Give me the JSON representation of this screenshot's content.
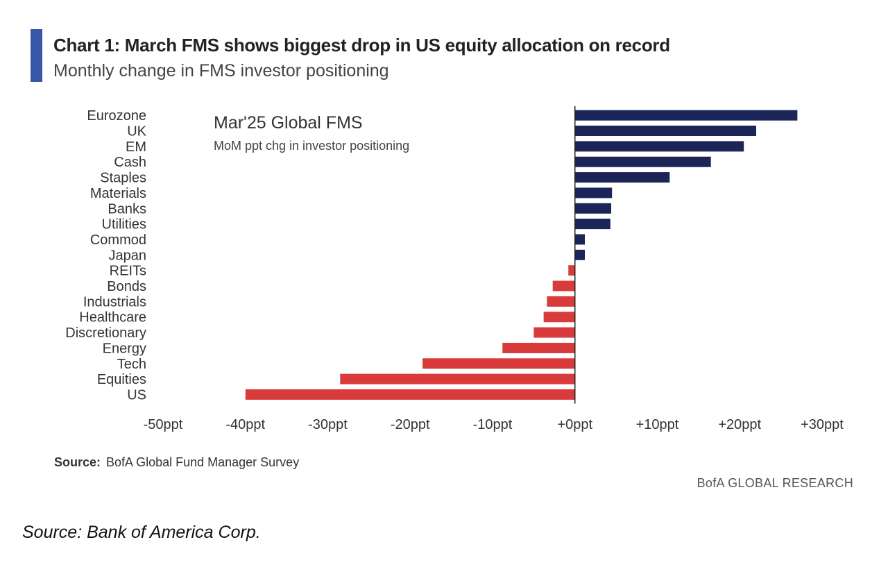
{
  "title": "Chart 1: March FMS shows biggest drop in US equity allocation on record",
  "subtitle": "Monthly change in FMS investor positioning",
  "source_label": "Source:",
  "source_text": "BofA Global Fund Manager Survey",
  "brand": "BofA GLOBAL RESEARCH",
  "footer_source": "Source: Bank of America Corp.",
  "colors": {
    "accent": "#3a56a6",
    "positive": "#1c2558",
    "negative": "#d93a3a"
  },
  "chart_data": {
    "type": "bar",
    "orientation": "horizontal",
    "inset_title": "Mar'25 Global FMS",
    "inset_subtitle": "MoM ppt chg in investor positioning",
    "categories": [
      "Eurozone",
      "UK",
      "EM",
      "Cash",
      "Staples",
      "Materials",
      "Banks",
      "Utilities",
      "Commod",
      "Japan",
      "REITs",
      "Bonds",
      "Industrials",
      "Healthcare",
      "Discretionary",
      "Energy",
      "Tech",
      "Equities",
      "US"
    ],
    "values": [
      27,
      22,
      20.5,
      16.5,
      11.5,
      4.5,
      4.4,
      4.3,
      1.2,
      1.2,
      -0.8,
      -2.7,
      -3.4,
      -3.8,
      -5,
      -8.8,
      -18.5,
      -28.5,
      -40
    ],
    "xlim": [
      -50,
      30
    ],
    "xticks": [
      -50,
      -40,
      -30,
      -20,
      -10,
      0,
      10,
      20,
      30
    ],
    "xtick_labels": [
      "-50ppt",
      "-40ppt",
      "-30ppt",
      "-20ppt",
      "-10ppt",
      "+0ppt",
      "+10ppt",
      "+20ppt",
      "+30ppt"
    ],
    "grid": false
  }
}
